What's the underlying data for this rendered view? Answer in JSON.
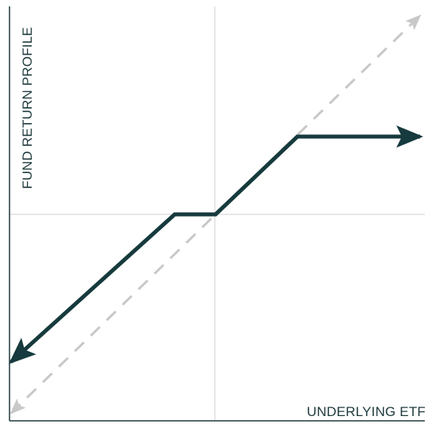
{
  "chart_data": {
    "type": "line",
    "xlabel": "UNDERLYING ETF",
    "ylabel": "FUND RETURN PROFILE",
    "xlim": [
      -10,
      10
    ],
    "ylim": [
      -10,
      10
    ],
    "grid": "center crosshair only",
    "ticks": "none",
    "colors": {
      "fund": "#163a3d",
      "reference": "#c8c8c8",
      "crosshair": "#cfcfcf",
      "frame": "#1f3a3d",
      "label": "#1f3a3d"
    },
    "series": [
      {
        "name": "",
        "role": "fund",
        "style": "solid, arrows at both ends",
        "x": [
          -10,
          -2,
          0,
          4,
          10
        ],
        "y": [
          -7.2,
          0,
          0,
          3.8,
          3.8
        ]
      },
      {
        "name": "",
        "role": "reference",
        "style": "dashed, arrows at both ends",
        "x": [
          -10,
          10
        ],
        "y": [
          -9.7,
          9.7
        ]
      }
    ]
  }
}
